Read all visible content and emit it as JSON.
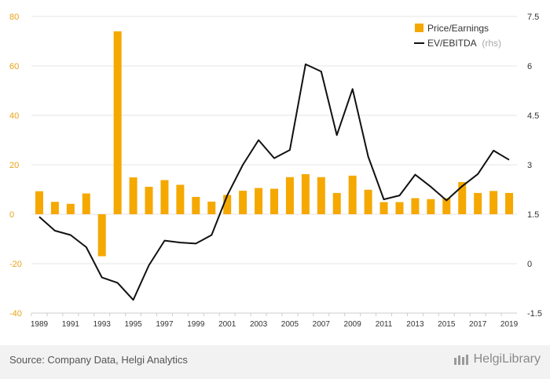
{
  "chart_data": {
    "type": "bar+line",
    "categories": [
      "1989",
      "1990",
      "1991",
      "1992",
      "1993",
      "1994",
      "1995",
      "1996",
      "1997",
      "1998",
      "1999",
      "2000",
      "2001",
      "2002",
      "2003",
      "2004",
      "2005",
      "2006",
      "2007",
      "2008",
      "2009",
      "2010",
      "2011",
      "2012",
      "2013",
      "2014",
      "2015",
      "2016",
      "2017",
      "2018",
      "2019"
    ],
    "x_tick_labels": [
      "1989",
      "1991",
      "1993",
      "1995",
      "1997",
      "1999",
      "2001",
      "2003",
      "2005",
      "2007",
      "2009",
      "2011",
      "2013",
      "2015",
      "2017",
      "2019"
    ],
    "series": [
      {
        "name": "Price/Earnings",
        "type": "bar",
        "axis": "left",
        "color": "#f5a800",
        "values": [
          9.3,
          5.0,
          4.2,
          8.4,
          -17.0,
          74.0,
          14.9,
          11.1,
          13.8,
          11.9,
          7.0,
          5.1,
          7.8,
          9.5,
          10.6,
          10.3,
          15.0,
          16.2,
          15.0,
          8.6,
          15.6,
          9.9,
          4.9,
          4.9,
          6.5,
          6.1,
          6.5,
          13.0,
          8.6,
          9.4,
          8.6
        ]
      },
      {
        "name": "EV/EBITDA",
        "name_suffix": "(rhs)",
        "type": "line",
        "axis": "right",
        "color": "#111111",
        "values": [
          1.42,
          1.0,
          0.87,
          0.5,
          -0.42,
          -0.58,
          -1.1,
          -0.05,
          0.7,
          0.64,
          0.61,
          0.87,
          2.07,
          3.0,
          3.75,
          3.2,
          3.45,
          6.05,
          5.83,
          3.9,
          5.3,
          3.25,
          1.95,
          2.07,
          2.7,
          2.33,
          1.92,
          2.35,
          2.72,
          3.43,
          3.15
        ]
      }
    ],
    "left_axis": {
      "min": -40,
      "max": 80,
      "ticks": [
        "-40",
        "-20",
        "0",
        "20",
        "40",
        "60",
        "80"
      ],
      "color": "#e8a317"
    },
    "right_axis": {
      "min": -1.5,
      "max": 7.5,
      "ticks": [
        "-1.5",
        "0",
        "1.5",
        "3",
        "4.5",
        "6",
        "7.5"
      ]
    },
    "grid": true,
    "legend": "top-right"
  },
  "footer": {
    "source": "Source: Company Data, Helgi Analytics",
    "logo": "HelgiLibrary"
  }
}
